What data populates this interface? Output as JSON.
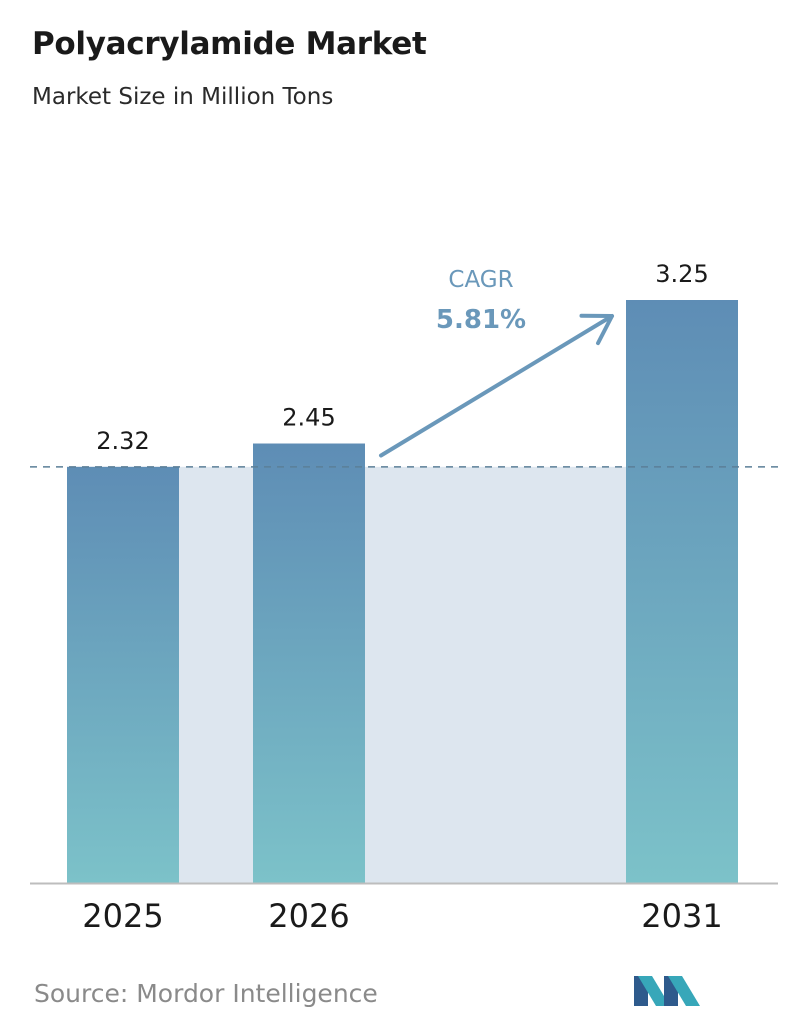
{
  "header": {
    "title": "Polyacrylamide Market",
    "subtitle": "Market Size in Million Tons"
  },
  "chart_data": {
    "type": "bar",
    "categories": [
      "2025",
      "2026",
      "2031"
    ],
    "values": [
      2.32,
      2.45,
      3.25
    ],
    "data_labels": [
      "2.32",
      "2.45",
      "3.25"
    ],
    "title": "Polyacrylamide Market",
    "subtitle": "Market Size in Million Tons",
    "xlabel": "",
    "ylabel": "",
    "ylim": [
      0,
      3.25
    ],
    "grid": false,
    "legend": "none",
    "reference_line": 2.32,
    "annotation": {
      "label": "CAGR",
      "value": "5.81%"
    }
  },
  "footer": {
    "source": "Source:  Mordor Intelligence",
    "logo_icon": "mordor-intelligence-logo-icon"
  },
  "colors": {
    "bar_top": "#5e8db5",
    "bar_bottom": "#7cc2c9",
    "reference_band": "#dde6ef",
    "reference_line": "#5b7f98",
    "arrow": "#6a98ba",
    "axis": "#bdbdbd",
    "logo_dark": "#2e5a8c",
    "logo_light": "#37a7b9"
  }
}
